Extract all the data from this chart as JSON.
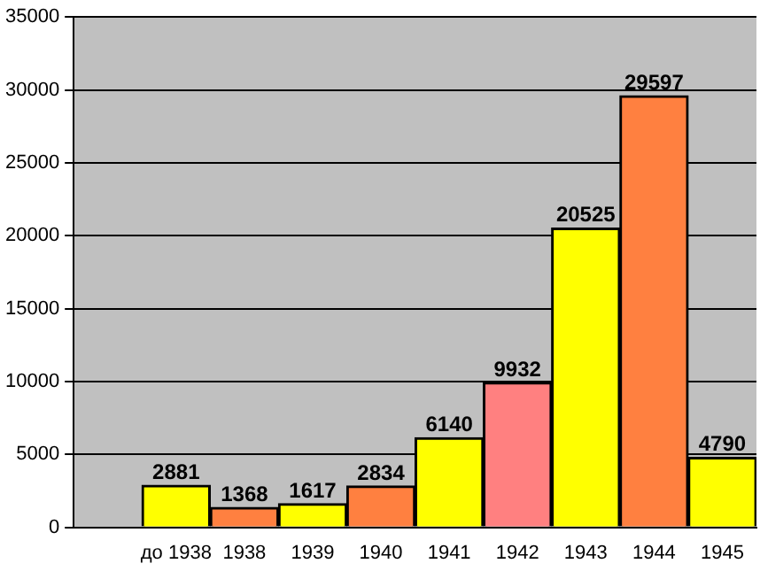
{
  "chart_data": {
    "type": "bar",
    "categories": [
      null,
      "до 1938",
      "1938",
      "1939",
      "1940",
      "1941",
      "1942",
      "1943",
      "1944",
      "1945"
    ],
    "values": [
      null,
      2881,
      1368,
      1617,
      2834,
      6140,
      9932,
      20525,
      29597,
      4790
    ],
    "colors": [
      "#ffff00",
      "#ffff00",
      "#ff8040",
      "#ffff00",
      "#ff8040",
      "#ffff00",
      "#ff8080",
      "#ffff00",
      "#ff8040",
      "#ffff00"
    ],
    "ylim": [
      0,
      35000
    ],
    "yticks": [
      0,
      5000,
      10000,
      15000,
      20000,
      25000,
      30000,
      35000
    ],
    "grid": "y",
    "legend": false,
    "data_labels": true
  }
}
